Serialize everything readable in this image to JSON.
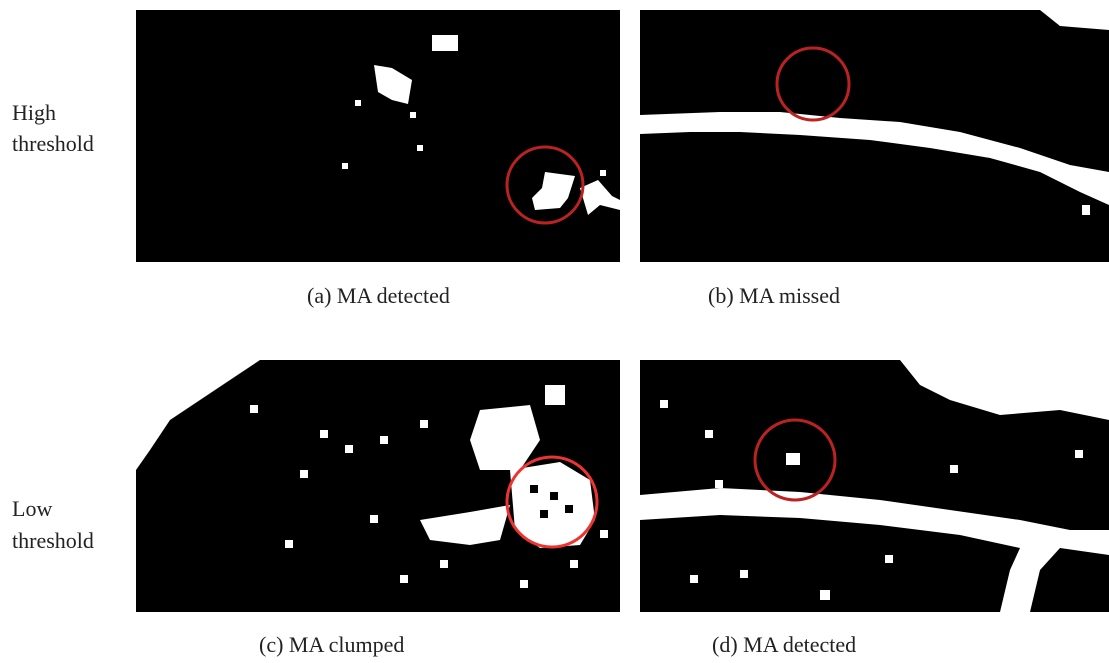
{
  "row_labels": [
    {
      "lines": [
        "High",
        "threshold"
      ]
    },
    {
      "lines": [
        "Low",
        "threshold"
      ]
    }
  ],
  "panels": [
    {
      "caption": "(a) MA detected"
    },
    {
      "caption": "(b) MA missed"
    },
    {
      "caption": "(c) MA clumped"
    },
    {
      "caption": "(d) MA detected"
    }
  ]
}
